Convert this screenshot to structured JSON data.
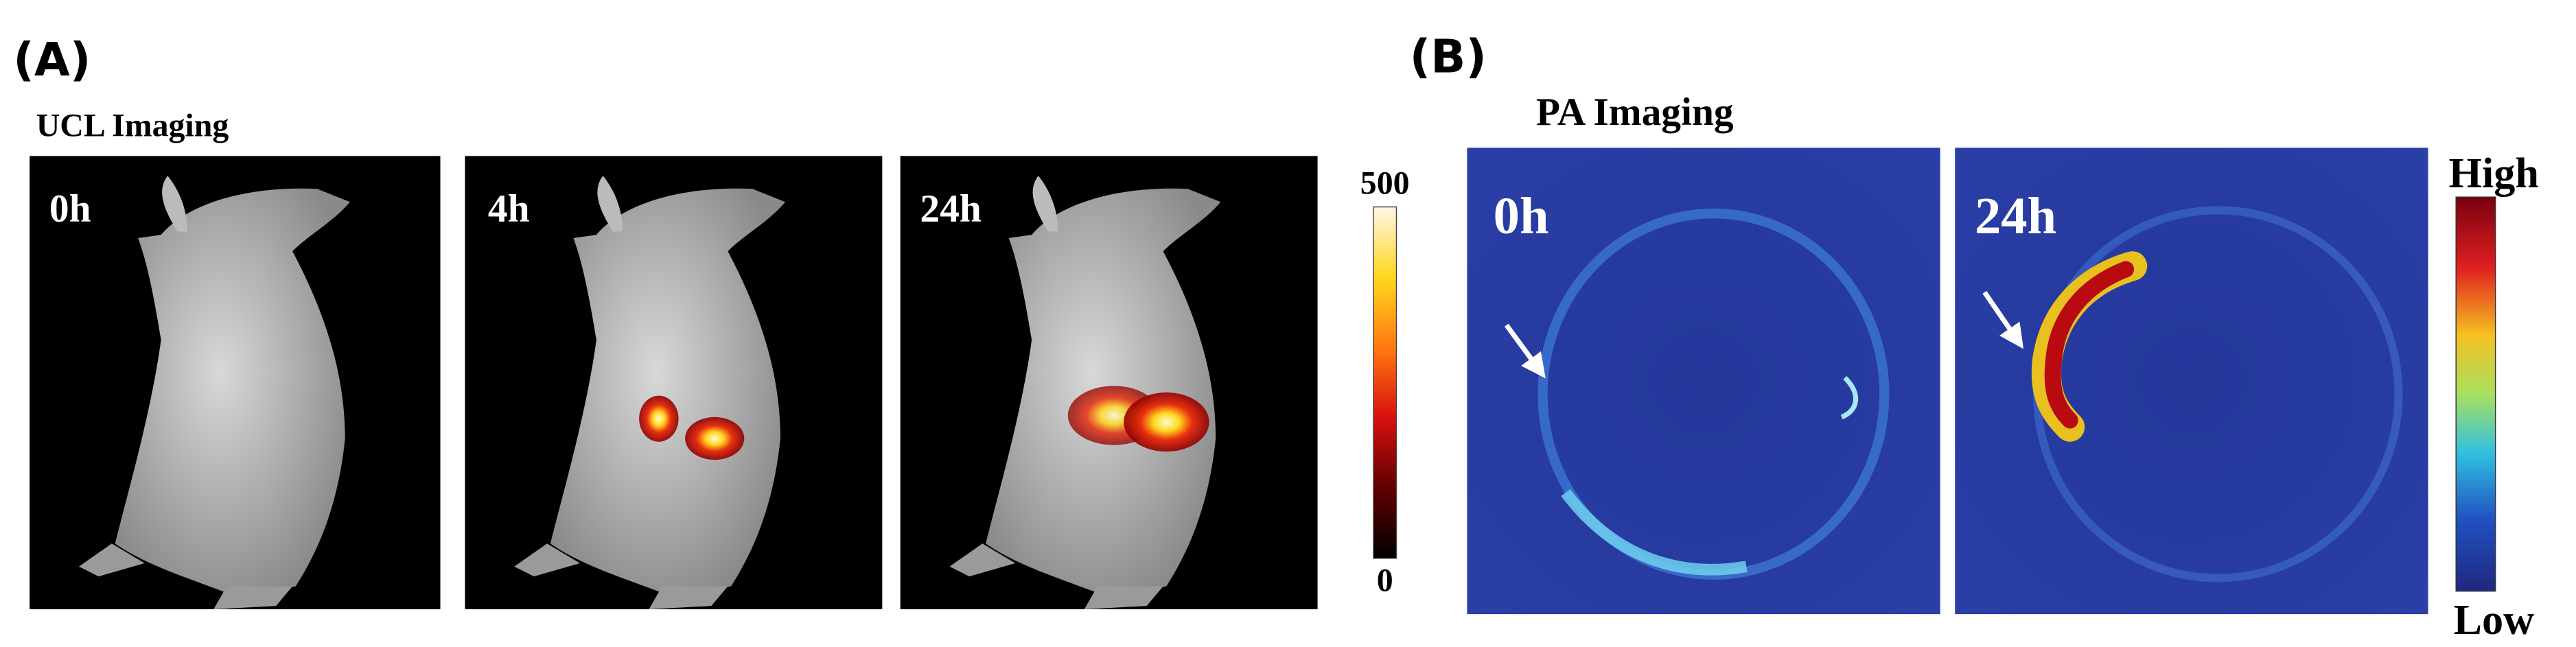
{
  "panel_a": {
    "label": "(A)",
    "title": "UCL Imaging",
    "frames": [
      {
        "time": "0h"
      },
      {
        "time": "4h"
      },
      {
        "time": "24h"
      }
    ],
    "colorbar": {
      "max": 500,
      "min": 0
    }
  },
  "panel_b": {
    "label": "(B)",
    "title": "PA Imaging",
    "frames": [
      {
        "time": "0h"
      },
      {
        "time": "24h"
      }
    ],
    "colorbar": {
      "high": "High",
      "low": "Low"
    }
  }
}
